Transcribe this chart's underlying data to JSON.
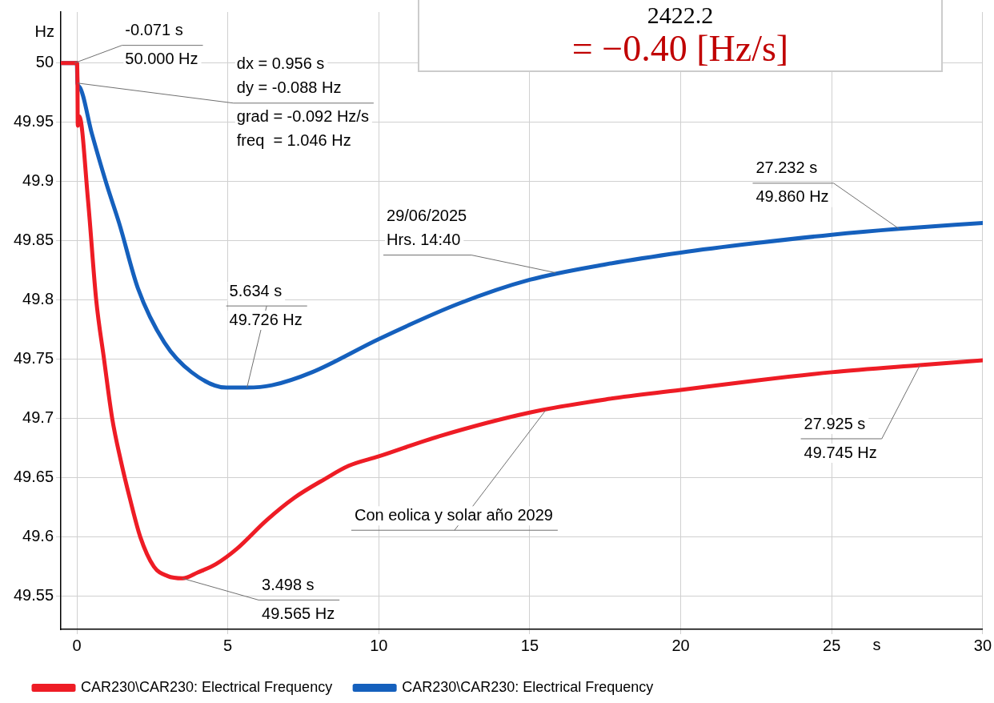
{
  "chart_data": {
    "type": "line",
    "xlabel": "s",
    "ylabel": "Hz",
    "xlim": [
      -0.53,
      30
    ],
    "ylim": [
      49.522,
      50.043
    ],
    "xticks": [
      0,
      5,
      10,
      15,
      20,
      25,
      30
    ],
    "yticks": [
      49.55,
      49.6,
      49.65,
      49.7,
      49.75,
      49.8,
      49.85,
      49.9,
      49.95,
      50
    ],
    "grid": true,
    "legend": "bottom",
    "marker": "none",
    "line_style": "solid",
    "series": [
      {
        "name": "CAR230\\CAR230: Electrical Frequency",
        "color": "#ee1c25",
        "x": [
          -0.53,
          0,
          0.02,
          0.03,
          0.08,
          0.37,
          0.64,
          0.9,
          1.17,
          1.45,
          1.76,
          2.1,
          2.55,
          3.0,
          3.498,
          4.0,
          4.6,
          5.3,
          6.28,
          7.2,
          8.22,
          9.0,
          10,
          12,
          15,
          17.5,
          20,
          22.5,
          25,
          27.925,
          30
        ],
        "values": [
          50,
          50,
          49.985,
          49.947,
          49.955,
          49.884,
          49.8,
          49.75,
          49.7,
          49.665,
          49.632,
          49.6,
          49.575,
          49.567,
          49.565,
          49.57,
          49.577,
          49.59,
          49.614,
          49.633,
          49.649,
          49.66,
          49.668,
          49.685,
          49.705,
          49.716,
          49.724,
          49.732,
          49.739,
          49.745,
          49.749
        ]
      },
      {
        "name": "CAR230\\CAR230: Electrical Frequency",
        "color": "#1560bd",
        "x": [
          -0.53,
          0,
          0.02,
          0.08,
          0.5,
          0.98,
          1.41,
          2.02,
          2.9,
          3.8,
          4.95,
          5.634,
          6.46,
          7.79,
          10,
          12.66,
          15,
          17.5,
          20,
          22.5,
          25,
          27.232,
          30
        ],
        "values": [
          50,
          50,
          49.983,
          49.98,
          49.94,
          49.898,
          49.864,
          49.81,
          49.764,
          49.739,
          49.726,
          49.726,
          49.728,
          49.739,
          49.767,
          49.797,
          49.817,
          49.83,
          49.84,
          49.848,
          49.855,
          49.86,
          49.865
        ]
      }
    ],
    "annotations": [
      {
        "text": "-0.071 s\n50.000 Hz",
        "x": -0.071,
        "y": 50
      },
      {
        "text": "dx = 0.956 s\ndy = -0.088 Hz\ngrad = -0.092 Hz/s\nfreq  = 1.046 Hz",
        "x": 0.02,
        "y": 49.983
      },
      {
        "text": "29/06/2025\nHrs. 14:40",
        "x": 15.85,
        "y": 49.823
      },
      {
        "text": "5.634 s\n49.726 Hz",
        "x": 5.634,
        "y": 49.726
      },
      {
        "text": "27.232 s\n49.860 Hz",
        "x": 27.232,
        "y": 49.86
      },
      {
        "text": "3.498 s\n49.565 Hz",
        "x": 3.498,
        "y": 49.565
      },
      {
        "text": "Con eolica y solar año 2029",
        "x": 15.53,
        "y": 49.707
      },
      {
        "text": "27.925 s\n49.745 Hz",
        "x": 27.925,
        "y": 49.745
      },
      "2422.2\n= −0.40 [Hz/s]"
    ]
  }
}
